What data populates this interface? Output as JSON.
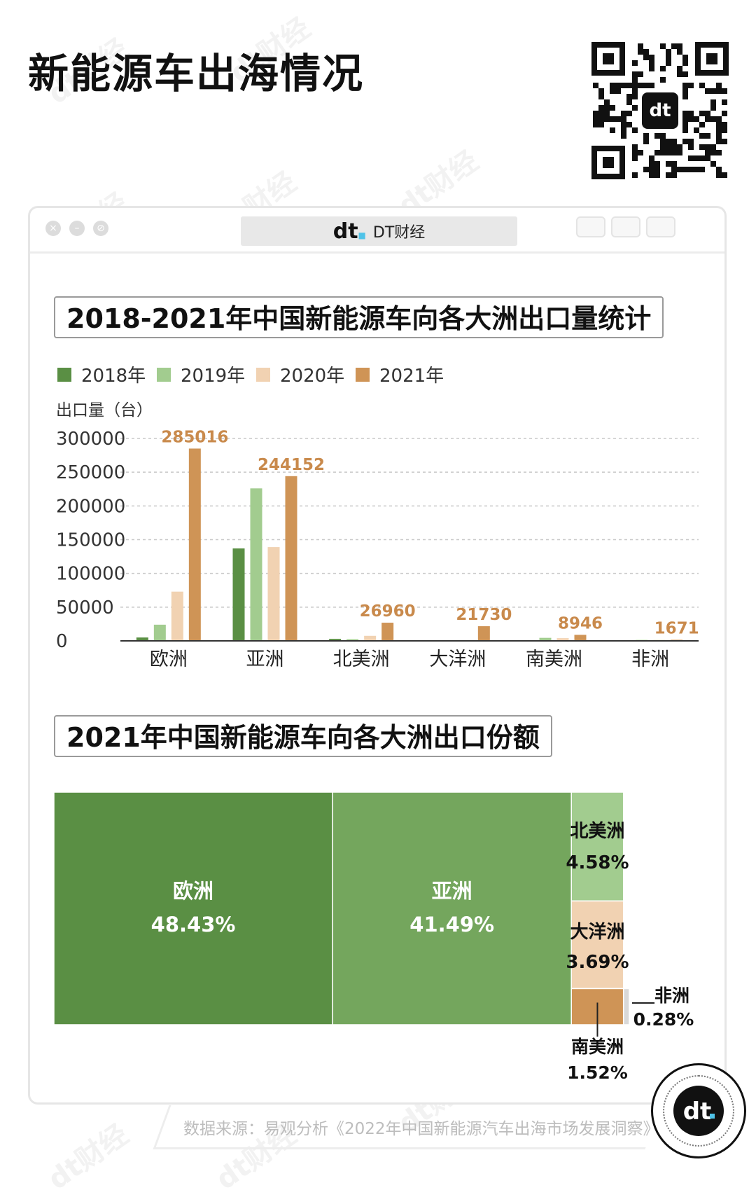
{
  "page": {
    "title": "新能源车出海情况",
    "browser_label": "DT财经",
    "source": "数据来源：易观分析《2022年中国新能源汽车出海市场发展洞察》",
    "watermark": "dt财经"
  },
  "colors": {
    "y2018": "#5a8f44",
    "y2019": "#a2cc8f",
    "y2020": "#f1d2b2",
    "y2021": "#cf9456",
    "label2021": "#c98a4c",
    "asia": "#74a65d",
    "africa": "#d9d9d9"
  },
  "chart_data": [
    {
      "type": "bar",
      "title": "2018-2021年中国新能源车向各大洲出口量统计",
      "ylabel": "出口量（台）",
      "xlabel": "",
      "ylim": [
        0,
        300000
      ],
      "yticks": [
        0,
        50000,
        100000,
        150000,
        200000,
        250000,
        300000
      ],
      "grid": true,
      "legend_position": "top-left",
      "categories": [
        "欧洲",
        "亚洲",
        "北美洲",
        "大洋洲",
        "南美洲",
        "非洲"
      ],
      "series": [
        {
          "name": "2018年",
          "values": [
            5000,
            137000,
            3000,
            0,
            1000,
            500
          ]
        },
        {
          "name": "2019年",
          "values": [
            24000,
            226000,
            2500,
            0,
            4500,
            1500
          ]
        },
        {
          "name": "2020年",
          "values": [
            73000,
            139000,
            7500,
            0,
            4000,
            1500
          ]
        },
        {
          "name": "2021年",
          "values": [
            285016,
            244152,
            26960,
            21730,
            8946,
            1671
          ]
        }
      ],
      "data_labels": [
        "285016",
        "244152",
        "26960",
        "21730",
        "8946",
        "1671"
      ]
    },
    {
      "type": "treemap",
      "title": "2021年中国新能源车向各大洲出口份额",
      "items": [
        {
          "name": "欧洲",
          "share": 48.43,
          "label": "48.43%"
        },
        {
          "name": "亚洲",
          "share": 41.49,
          "label": "41.49%"
        },
        {
          "name": "北美洲",
          "share": 4.58,
          "label": "4.58%"
        },
        {
          "name": "大洋洲",
          "share": 3.69,
          "label": "3.69%"
        },
        {
          "name": "南美洲",
          "share": 1.52,
          "label": "1.52%"
        },
        {
          "name": "非洲",
          "share": 0.28,
          "label": "0.28%"
        }
      ]
    }
  ]
}
